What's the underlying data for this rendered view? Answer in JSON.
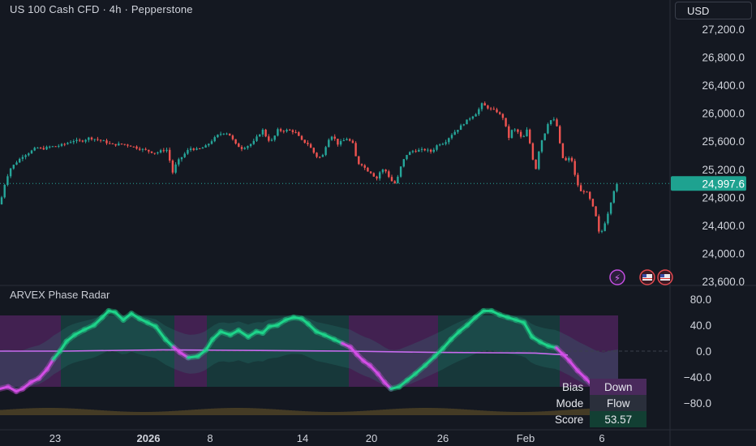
{
  "header": {
    "symbol_title": "US 100 Cash CFD · 4h · Pepperstone",
    "currency": "USD"
  },
  "colors": {
    "up": "#26a69a",
    "down": "#ef5350",
    "bg": "#141821",
    "oscillator_up": "#1ed48a",
    "oscillator_down": "#d34ee6",
    "signal_line": "#c86bf0"
  },
  "indicator": {
    "title": "ARVEX Phase Radar",
    "table": [
      {
        "key": "Bias",
        "value": "Down"
      },
      {
        "key": "Mode",
        "value": "Flow"
      },
      {
        "key": "Score",
        "value": "53.57"
      }
    ]
  },
  "icons": [
    "lightning-icon",
    "us-flag-icon",
    "us-flag-icon"
  ],
  "chart_data": [
    {
      "type": "candlestick",
      "title": "US 100 Cash CFD · 4h · Pepperstone",
      "ylim": [
        23600,
        27400
      ],
      "yticks": [
        "27,200.0",
        "26,800.0",
        "26,400.0",
        "26,000.0",
        "25,600.0",
        "25,200.0",
        "24,800.0",
        "24,400.0",
        "24,000.0",
        "23,600.0"
      ],
      "ytick_values": [
        27200,
        26800,
        26400,
        26000,
        25600,
        25200,
        24800,
        24400,
        24000,
        23600
      ],
      "last_price": 24997.6,
      "last_price_label": "24,997.6",
      "xticks": [
        "23",
        "2026",
        "8",
        "14",
        "20",
        "26",
        "Feb",
        "6"
      ],
      "grid": false,
      "price_path": [
        [
          0,
          24700
        ],
        [
          6,
          25000
        ],
        [
          12,
          25200
        ],
        [
          20,
          25300
        ],
        [
          28,
          25390
        ],
        [
          36,
          25440
        ],
        [
          45,
          25510
        ],
        [
          52,
          25490
        ],
        [
          60,
          25520
        ],
        [
          70,
          25530
        ],
        [
          80,
          25560
        ],
        [
          90,
          25610
        ],
        [
          100,
          25600
        ],
        [
          110,
          25650
        ],
        [
          118,
          25630
        ],
        [
          128,
          25600
        ],
        [
          138,
          25550
        ],
        [
          150,
          25560
        ],
        [
          160,
          25540
        ],
        [
          170,
          25500
        ],
        [
          180,
          25470
        ],
        [
          192,
          25430
        ],
        [
          200,
          25470
        ],
        [
          207,
          25480
        ],
        [
          212,
          25130
        ],
        [
          218,
          25300
        ],
        [
          226,
          25400
        ],
        [
          234,
          25500
        ],
        [
          244,
          25480
        ],
        [
          254,
          25530
        ],
        [
          262,
          25620
        ],
        [
          270,
          25700
        ],
        [
          278,
          25730
        ],
        [
          284,
          25680
        ],
        [
          290,
          25560
        ],
        [
          298,
          25500
        ],
        [
          306,
          25540
        ],
        [
          312,
          25580
        ],
        [
          318,
          25680
        ],
        [
          324,
          25760
        ],
        [
          330,
          25620
        ],
        [
          336,
          25610
        ],
        [
          342,
          25760
        ],
        [
          348,
          25750
        ],
        [
          356,
          25760
        ],
        [
          364,
          25730
        ],
        [
          372,
          25610
        ],
        [
          380,
          25560
        ],
        [
          386,
          25450
        ],
        [
          392,
          25360
        ],
        [
          398,
          25400
        ],
        [
          404,
          25620
        ],
        [
          410,
          25690
        ],
        [
          416,
          25560
        ],
        [
          422,
          25600
        ],
        [
          428,
          25640
        ],
        [
          436,
          25550
        ],
        [
          440,
          25290
        ],
        [
          446,
          25270
        ],
        [
          452,
          25190
        ],
        [
          458,
          25150
        ],
        [
          464,
          25060
        ],
        [
          470,
          25200
        ],
        [
          476,
          25170
        ],
        [
          482,
          25040
        ],
        [
          488,
          24990
        ],
        [
          494,
          25230
        ],
        [
          500,
          25400
        ],
        [
          508,
          25460
        ],
        [
          516,
          25470
        ],
        [
          524,
          25480
        ],
        [
          532,
          25450
        ],
        [
          540,
          25560
        ],
        [
          548,
          25580
        ],
        [
          556,
          25690
        ],
        [
          564,
          25770
        ],
        [
          572,
          25860
        ],
        [
          580,
          25940
        ],
        [
          588,
          26010
        ],
        [
          594,
          26130
        ],
        [
          600,
          26090
        ],
        [
          606,
          26050
        ],
        [
          612,
          26030
        ],
        [
          618,
          25960
        ],
        [
          622,
          25920
        ],
        [
          626,
          25620
        ],
        [
          632,
          25780
        ],
        [
          638,
          25740
        ],
        [
          644,
          25620
        ],
        [
          650,
          25770
        ],
        [
          656,
          25400
        ],
        [
          660,
          25170
        ],
        [
          664,
          25450
        ],
        [
          668,
          25620
        ],
        [
          672,
          25730
        ],
        [
          676,
          25880
        ],
        [
          682,
          25920
        ],
        [
          688,
          25780
        ],
        [
          692,
          25380
        ],
        [
          698,
          25320
        ],
        [
          704,
          25380
        ],
        [
          710,
          25040
        ],
        [
          716,
          24880
        ],
        [
          722,
          24900
        ],
        [
          728,
          24750
        ],
        [
          734,
          24560
        ],
        [
          738,
          24300
        ],
        [
          742,
          24320
        ],
        [
          746,
          24450
        ],
        [
          750,
          24600
        ],
        [
          754,
          24780
        ],
        [
          758,
          24950
        ],
        [
          762,
          24998
        ]
      ]
    },
    {
      "type": "line",
      "title": "ARVEX Phase Radar",
      "ylim": [
        -100,
        100
      ],
      "yticks": [
        "80.0",
        "40.0",
        "0.0",
        "−40.0",
        "−80.0"
      ],
      "ytick_values": [
        80,
        40,
        0,
        -40,
        -80
      ],
      "series": [
        {
          "values": [
            [
              0,
              -58
            ],
            [
              10,
              -55
            ],
            [
              20,
              -62
            ],
            [
              28,
              -58
            ],
            [
              38,
              -48
            ],
            [
              48,
              -42
            ],
            [
              58,
              -28
            ],
            [
              66,
              -12
            ],
            [
              74,
              0
            ],
            [
              82,
              15
            ],
            [
              92,
              25
            ],
            [
              104,
              33
            ],
            [
              116,
              40
            ],
            [
              126,
              52
            ],
            [
              134,
              62
            ],
            [
              142,
              60
            ],
            [
              152,
              48
            ],
            [
              162,
              58
            ],
            [
              172,
              50
            ],
            [
              182,
              44
            ],
            [
              192,
              38
            ],
            [
              204,
              18
            ],
            [
              214,
              6
            ],
            [
              222,
              -2
            ],
            [
              232,
              -10
            ],
            [
              244,
              -8
            ],
            [
              254,
              2
            ],
            [
              262,
              18
            ],
            [
              272,
              30
            ],
            [
              284,
              25
            ],
            [
              294,
              32
            ],
            [
              306,
              22
            ],
            [
              316,
              30
            ],
            [
              324,
              28
            ],
            [
              332,
              38
            ],
            [
              342,
              40
            ],
            [
              352,
              48
            ],
            [
              362,
              52
            ],
            [
              372,
              50
            ],
            [
              380,
              42
            ],
            [
              390,
              30
            ],
            [
              400,
              25
            ],
            [
              412,
              18
            ],
            [
              422,
              12
            ],
            [
              432,
              6
            ],
            [
              440,
              -5
            ],
            [
              448,
              -15
            ],
            [
              456,
              -22
            ],
            [
              466,
              -35
            ],
            [
              474,
              -48
            ],
            [
              482,
              -58
            ],
            [
              492,
              -55
            ],
            [
              502,
              -45
            ],
            [
              512,
              -35
            ],
            [
              524,
              -22
            ],
            [
              536,
              -8
            ],
            [
              546,
              4
            ],
            [
              556,
              18
            ],
            [
              566,
              30
            ],
            [
              576,
              40
            ],
            [
              586,
              52
            ],
            [
              596,
              62
            ],
            [
              606,
              62
            ],
            [
              616,
              56
            ],
            [
              626,
              52
            ],
            [
              636,
              48
            ],
            [
              646,
              44
            ],
            [
              656,
              22
            ],
            [
              666,
              14
            ],
            [
              676,
              8
            ],
            [
              686,
              5
            ],
            [
              694,
              -5
            ],
            [
              702,
              -15
            ],
            [
              712,
              -30
            ],
            [
              722,
              -42
            ],
            [
              732,
              -55
            ],
            [
              742,
              -66
            ],
            [
              750,
              -60
            ],
            [
              760,
              -55
            ]
          ]
        },
        {
          "values": [
            [
              0,
              0
            ],
            [
              80,
              0
            ],
            [
              200,
              2
            ],
            [
              320,
              1
            ],
            [
              430,
              0
            ],
            [
              540,
              -2
            ],
            [
              660,
              -3
            ],
            [
              700,
              -6
            ]
          ]
        }
      ]
    }
  ]
}
